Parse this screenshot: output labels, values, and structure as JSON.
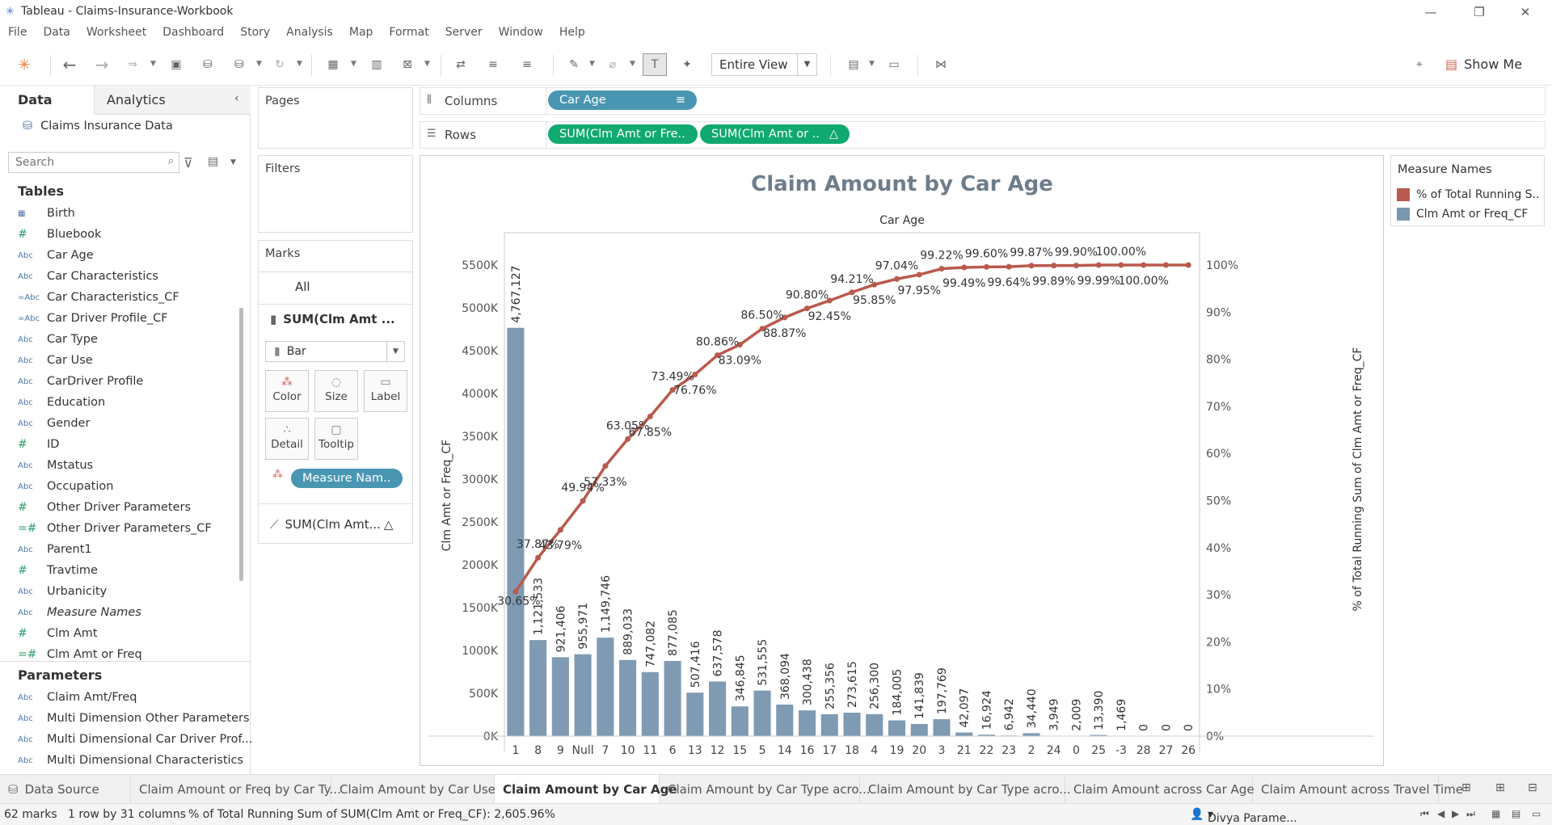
{
  "window": {
    "title": "Tableau - Claims-Insurance-Workbook"
  },
  "menu": [
    "File",
    "Data",
    "Worksheet",
    "Dashboard",
    "Story",
    "Analysis",
    "Map",
    "Format",
    "Server",
    "Window",
    "Help"
  ],
  "toolbar": {
    "fit_value": "Entire View",
    "show_me": "Show Me"
  },
  "left_pane": {
    "tab_data": "Data",
    "tab_analytics": "Analytics",
    "datasource": "Claims Insurance Data",
    "search_placeholder": "Search",
    "tables_heading": "Tables",
    "fields": [
      {
        "icon": "calendar",
        "label": "Birth"
      },
      {
        "icon": "#",
        "label": "Bluebook"
      },
      {
        "icon": "Abc",
        "label": "Car Age"
      },
      {
        "icon": "Abc",
        "label": "Car Characteristics"
      },
      {
        "icon": "=Abc",
        "label": "Car Characteristics_CF"
      },
      {
        "icon": "=Abc",
        "label": "Car Driver Profile_CF"
      },
      {
        "icon": "Abc",
        "label": "Car Type"
      },
      {
        "icon": "Abc",
        "label": "Car Use"
      },
      {
        "icon": "Abc",
        "label": "CarDriver Profile"
      },
      {
        "icon": "Abc",
        "label": "Education"
      },
      {
        "icon": "Abc",
        "label": "Gender"
      },
      {
        "icon": "#",
        "label": "ID"
      },
      {
        "icon": "Abc",
        "label": "Mstatus"
      },
      {
        "icon": "Abc",
        "label": "Occupation"
      },
      {
        "icon": "#",
        "label": "Other Driver Parameters"
      },
      {
        "icon": "=#",
        "label": "Other Driver Parameters_CF"
      },
      {
        "icon": "Abc",
        "label": "Parent1"
      },
      {
        "icon": "#",
        "label": "Travtime"
      },
      {
        "icon": "Abc",
        "label": "Urbanicity"
      },
      {
        "icon": "Abc",
        "label": "Measure Names"
      },
      {
        "icon": "#",
        "label": "Clm Amt"
      },
      {
        "icon": "=#",
        "label": "Clm Amt or Freq"
      }
    ],
    "parameters_heading": "Parameters",
    "parameters": [
      "Claim Amt/Freq",
      "Multi Dimension Other Parameters",
      "Multi Dimensional Car Driver Prof...",
      "Multi Dimensional Characteristics"
    ]
  },
  "cards": {
    "pages": "Pages",
    "filters": "Filters",
    "marks": "Marks",
    "marks_all": "All",
    "marks_sub1": "SUM(Clm Amt ...",
    "mark_type": "Bar",
    "buttons": [
      "Color",
      "Size",
      "Label",
      "Detail",
      "Tooltip"
    ],
    "measure_names_pill": "Measure Nam..",
    "marks_sub2": "SUM(Clm Amt..."
  },
  "shelves": {
    "columns_label": "Columns",
    "rows_label": "Rows",
    "columns_pill": "Car Age",
    "rows_pill1": "SUM(Clm Amt or Fre..",
    "rows_pill2": "SUM(Clm Amt or .."
  },
  "legend": {
    "title": "Measure Names",
    "items": [
      {
        "label": "% of Total Running S..",
        "color": "#b95a4d"
      },
      {
        "label": "Clm Amt or Freq_CF",
        "color": "#7a97b0"
      }
    ]
  },
  "colors": {
    "bar": "#7f9ab3",
    "line": "#b95a4d",
    "pill_blue": "#4996b2",
    "pill_green": "#10a96f"
  },
  "chart_data": {
    "type": "bar",
    "title": "Claim Amount by Car Age",
    "xlabel": "Car Age",
    "ylabel": "Clm Amt or Freq_CF",
    "y2label": "% of Total Running Sum of Clm Amt or Freq_CF",
    "ylim": [
      0,
      5800000
    ],
    "y2lim": [
      0,
      1.0
    ],
    "yticks": [
      "0K",
      "500K",
      "1000K",
      "1500K",
      "2000K",
      "2500K",
      "3000K",
      "3500K",
      "4000K",
      "4500K",
      "5000K",
      "5500K"
    ],
    "y2ticks": [
      "0%",
      "10%",
      "20%",
      "30%",
      "40%",
      "50%",
      "60%",
      "70%",
      "80%",
      "90%",
      "100%"
    ],
    "categories": [
      "1",
      "8",
      "9",
      "Null",
      "7",
      "10",
      "11",
      "6",
      "13",
      "12",
      "15",
      "5",
      "14",
      "16",
      "17",
      "18",
      "4",
      "19",
      "20",
      "3",
      "21",
      "22",
      "23",
      "2",
      "24",
      "0",
      "25",
      "-3",
      "28",
      "27",
      "26"
    ],
    "series": [
      {
        "name": "Clm Amt or Freq_CF",
        "type": "bar",
        "values": [
          4767127,
          1121533,
          921406,
          955971,
          1149746,
          889033,
          747082,
          877085,
          507416,
          637578,
          346845,
          531555,
          368094,
          300438,
          255356,
          273615,
          256300,
          184005,
          141839,
          197769,
          42097,
          16924,
          6942,
          34440,
          3949,
          2009,
          13390,
          1469,
          0,
          0,
          0
        ],
        "labels": [
          "4,767,127",
          "1,121,533",
          "921,406",
          "955,971",
          "1,149,746",
          "889,033",
          "747,082",
          "877,085",
          "507,416",
          "637,578",
          "346,845",
          "531,555",
          "368,094",
          "300,438",
          "255,356",
          "273,615",
          "256,300",
          "184,005",
          "141,839",
          "197,769",
          "42,097",
          "16,924",
          "6,942",
          "34,440",
          "3,949",
          "2,009",
          "13,390",
          "1,469",
          "0",
          "0",
          "0"
        ]
      },
      {
        "name": "% of Total Running Sum",
        "type": "line",
        "values": [
          0.3065,
          0.3787,
          0.4379,
          0.4994,
          0.5733,
          0.6305,
          0.6785,
          0.7349,
          0.7676,
          0.8086,
          0.8309,
          0.865,
          0.8887,
          0.908,
          0.9245,
          0.9421,
          0.9585,
          0.9704,
          0.9795,
          0.9922,
          0.9949,
          0.996,
          0.9964,
          0.9987,
          0.9989,
          0.999,
          0.9999,
          1.0,
          1.0,
          1.0,
          1.0
        ],
        "labels": [
          "30.65%",
          "37.87%",
          "43.79%",
          "49.94%",
          "57.33%",
          "63.05%",
          "67.85%",
          "73.49%",
          "76.76%",
          "80.86%",
          "83.09%",
          "86.50%",
          "88.87%",
          "90.80%",
          "92.45%",
          "94.21%",
          "95.85%",
          "97.04%",
          "97.95%",
          "99.22%",
          "99.49%",
          "99.60%",
          "99.64%",
          "99.87%",
          "99.89%",
          "99.90%",
          "99.99%",
          "100.00%",
          "100.00%",
          "",
          ""
        ]
      }
    ]
  },
  "sheet_tabs": [
    "Data Source",
    "Claim Amount or Freq by Car Ty...",
    "Claim Amount by Car Use",
    "Claim Amount by Car Age",
    "Claim Amount by Car Type acro...",
    "Claim Amount by Car Type acro...",
    "Claim Amount across Car Age",
    "Claim Amount across Travel Time"
  ],
  "status": {
    "marks": "62 marks",
    "dims": "1 row by 31 columns",
    "summary": "% of Total Running Sum of SUM(Clm Amt or Freq_CF): 2,605.96%",
    "user": "Divya Parame..."
  }
}
